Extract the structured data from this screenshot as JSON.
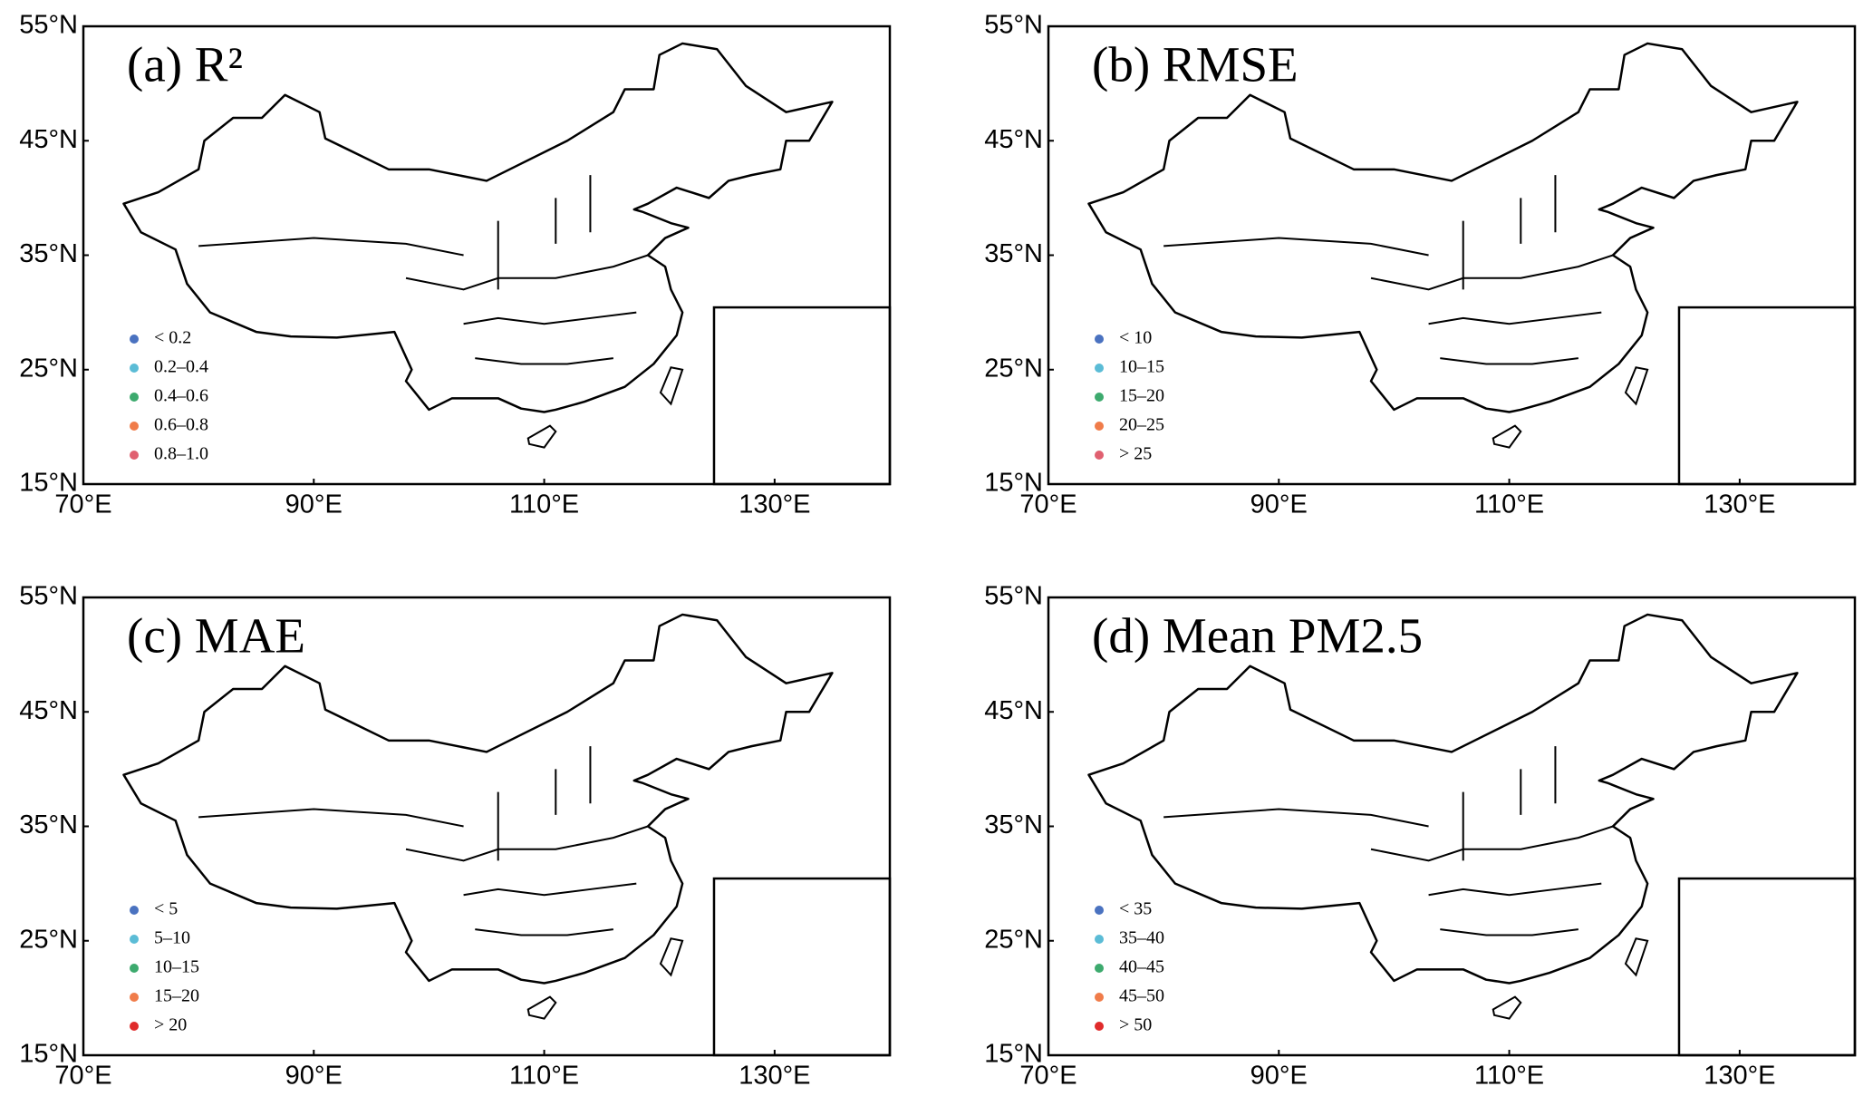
{
  "axes": {
    "xlim": [
      70,
      140
    ],
    "ylim": [
      15,
      55
    ],
    "xticks": [
      {
        "value": 70,
        "label": "70°E"
      },
      {
        "value": 90,
        "label": "90°E"
      },
      {
        "value": 110,
        "label": "110°E"
      },
      {
        "value": 130,
        "label": "130°E"
      }
    ],
    "yticks": [
      {
        "value": 15,
        "label": "15°N"
      },
      {
        "value": 25,
        "label": "25°N"
      },
      {
        "value": 35,
        "label": "35°N"
      },
      {
        "value": 45,
        "label": "45°N"
      },
      {
        "value": 55,
        "label": "55°N"
      }
    ]
  },
  "panels": [
    {
      "title": "(a)  R²",
      "legend": [
        {
          "label": "< 0.2",
          "color": "#4a72c0"
        },
        {
          "label": "0.2–0.4",
          "color": "#5bbcd6"
        },
        {
          "label": "0.4–0.6",
          "color": "#3daa6e"
        },
        {
          "label": "0.6–0.8",
          "color": "#f07c4a"
        },
        {
          "label": "0.8–1.0",
          "color": "#e06070"
        }
      ]
    },
    {
      "title": "(b)  RMSE",
      "legend": [
        {
          "label": "< 10",
          "color": "#4a72c0"
        },
        {
          "label": "10–15",
          "color": "#5bbcd6"
        },
        {
          "label": "15–20",
          "color": "#3daa6e"
        },
        {
          "label": "20–25",
          "color": "#f07c4a"
        },
        {
          "label": "> 25",
          "color": "#e06070"
        }
      ]
    },
    {
      "title": "(c)  MAE",
      "legend": [
        {
          "label": "< 5",
          "color": "#4a72c0"
        },
        {
          "label": "5–10",
          "color": "#5bbcd6"
        },
        {
          "label": "10–15",
          "color": "#3daa6e"
        },
        {
          "label": "15–20",
          "color": "#f07c4a"
        },
        {
          "label": "> 20",
          "color": "#e02b2b"
        }
      ]
    },
    {
      "title": "(d)  Mean PM2.5",
      "legend": [
        {
          "label": "< 35",
          "color": "#4a72c0"
        },
        {
          "label": "35–40",
          "color": "#5bbcd6"
        },
        {
          "label": "40–45",
          "color": "#3daa6e"
        },
        {
          "label": "45–50",
          "color": "#f07c4a"
        },
        {
          "label": "> 50",
          "color": "#e02b2b"
        }
      ]
    }
  ]
}
